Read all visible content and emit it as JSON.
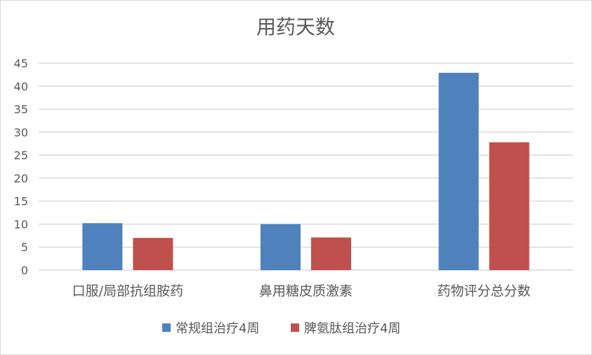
{
  "chart_data": {
    "type": "bar",
    "title": "用药天数",
    "categories": [
      "口服/局部抗组胺药",
      "鼻用糖皮质激素",
      "药物评分总分数"
    ],
    "series": [
      {
        "name": "常规组治疗4周",
        "color": "#4f81bd",
        "values": [
          10.2,
          10.0,
          42.9
        ]
      },
      {
        "name": "脾氨肽组治疗4周",
        "color": "#c0504d",
        "values": [
          7.0,
          7.1,
          27.8
        ]
      }
    ],
    "ylim": [
      0,
      45
    ],
    "yticks": [
      "0",
      "5",
      "10",
      "15",
      "20",
      "25",
      "30",
      "35",
      "40",
      "45"
    ],
    "grid": true,
    "legend": "bottom"
  }
}
